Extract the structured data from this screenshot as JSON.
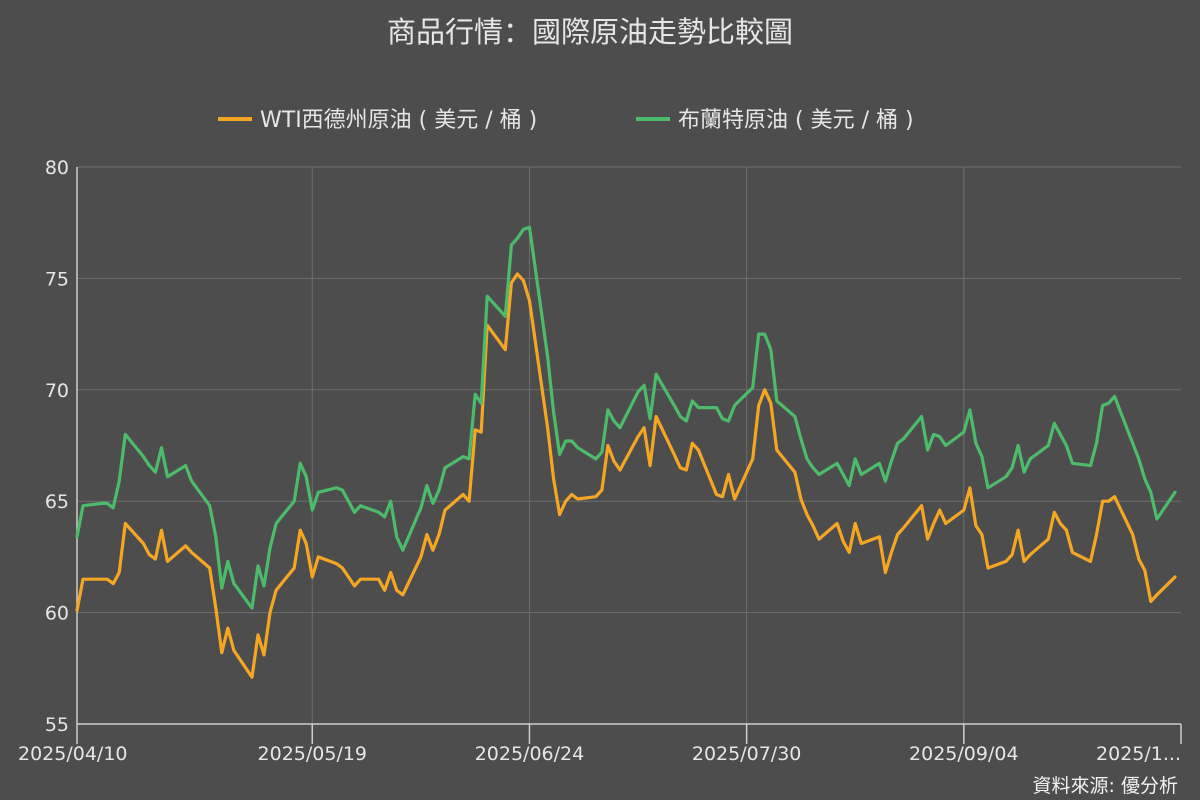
{
  "chart_data": {
    "type": "line",
    "title": "商品行情：國際原油走勢比較圖",
    "source": "資料來源: 優分析",
    "ylim": [
      55,
      80
    ],
    "yticks": [
      55,
      60,
      65,
      70,
      75,
      80
    ],
    "grid": true,
    "legend_position": "top-center",
    "xtick_labels": [
      "2025/04/10",
      "2025/05/19",
      "2025/06/24",
      "2025/07/30",
      "2025/09/04",
      "2025/1..."
    ],
    "xtick_dates": [
      "2025-04-10",
      "2025-05-19",
      "2025-06-24",
      "2025-07-30",
      "2025-09-04",
      "2025-10-10"
    ],
    "series": [
      {
        "name": "WTI西德州原油 ( 美元 / 桶 )",
        "color": "#f5a623",
        "points": [
          [
            "2025-04-10",
            60.1
          ],
          [
            "2025-04-11",
            61.5
          ],
          [
            "2025-04-14",
            61.5
          ],
          [
            "2025-04-15",
            61.5
          ],
          [
            "2025-04-16",
            61.3
          ],
          [
            "2025-04-17",
            61.8
          ],
          [
            "2025-04-18",
            64.0
          ],
          [
            "2025-04-21",
            63.1
          ],
          [
            "2025-04-22",
            62.6
          ],
          [
            "2025-04-23",
            62.4
          ],
          [
            "2025-04-24",
            63.7
          ],
          [
            "2025-04-25",
            62.3
          ],
          [
            "2025-04-28",
            63.0
          ],
          [
            "2025-04-29",
            62.7
          ],
          [
            "2025-05-02",
            62.0
          ],
          [
            "2025-05-03",
            60.2
          ],
          [
            "2025-05-04",
            58.2
          ],
          [
            "2025-05-05",
            59.3
          ],
          [
            "2025-05-06",
            58.3
          ],
          [
            "2025-05-09",
            57.1
          ],
          [
            "2025-05-10",
            59.0
          ],
          [
            "2025-05-11",
            58.1
          ],
          [
            "2025-05-12",
            60.0
          ],
          [
            "2025-05-13",
            61.0
          ],
          [
            "2025-05-16",
            62.0
          ],
          [
            "2025-05-17",
            63.7
          ],
          [
            "2025-05-18",
            63.1
          ],
          [
            "2025-05-19",
            61.6
          ],
          [
            "2025-05-20",
            62.5
          ],
          [
            "2025-05-23",
            62.2
          ],
          [
            "2025-05-24",
            62.0
          ],
          [
            "2025-05-26",
            61.2
          ],
          [
            "2025-05-27",
            61.5
          ],
          [
            "2025-05-30",
            61.5
          ],
          [
            "2025-05-31",
            61.0
          ],
          [
            "2025-06-01",
            61.8
          ],
          [
            "2025-06-02",
            61.0
          ],
          [
            "2025-06-03",
            60.8
          ],
          [
            "2025-06-06",
            62.5
          ],
          [
            "2025-06-07",
            63.5
          ],
          [
            "2025-06-08",
            62.8
          ],
          [
            "2025-06-09",
            63.5
          ],
          [
            "2025-06-10",
            64.6
          ],
          [
            "2025-06-13",
            65.3
          ],
          [
            "2025-06-14",
            65.0
          ],
          [
            "2025-06-15",
            68.2
          ],
          [
            "2025-06-16",
            68.1
          ],
          [
            "2025-06-17",
            72.9
          ],
          [
            "2025-06-20",
            71.8
          ],
          [
            "2025-06-21",
            74.8
          ],
          [
            "2025-06-22",
            75.2
          ],
          [
            "2025-06-23",
            74.9
          ],
          [
            "2025-06-24",
            74.0
          ],
          [
            "2025-06-27",
            68.3
          ],
          [
            "2025-06-28",
            66.0
          ],
          [
            "2025-06-29",
            64.4
          ],
          [
            "2025-06-30",
            65.0
          ],
          [
            "2025-07-01",
            65.3
          ],
          [
            "2025-07-02",
            65.1
          ],
          [
            "2025-07-05",
            65.2
          ],
          [
            "2025-07-06",
            65.5
          ],
          [
            "2025-07-07",
            67.5
          ],
          [
            "2025-07-08",
            66.8
          ],
          [
            "2025-07-09",
            66.4
          ],
          [
            "2025-07-12",
            67.9
          ],
          [
            "2025-07-13",
            68.3
          ],
          [
            "2025-07-14",
            66.6
          ],
          [
            "2025-07-15",
            68.8
          ],
          [
            "2025-07-18",
            67.1
          ],
          [
            "2025-07-19",
            66.5
          ],
          [
            "2025-07-20",
            66.4
          ],
          [
            "2025-07-21",
            67.6
          ],
          [
            "2025-07-22",
            67.3
          ],
          [
            "2025-07-25",
            65.3
          ],
          [
            "2025-07-26",
            65.2
          ],
          [
            "2025-07-27",
            66.2
          ],
          [
            "2025-07-28",
            65.1
          ],
          [
            "2025-07-31",
            66.9
          ],
          [
            "2025-08-01",
            69.3
          ],
          [
            "2025-08-02",
            70.0
          ],
          [
            "2025-08-03",
            69.4
          ],
          [
            "2025-08-04",
            67.3
          ],
          [
            "2025-08-07",
            66.3
          ],
          [
            "2025-08-08",
            65.1
          ],
          [
            "2025-08-09",
            64.4
          ],
          [
            "2025-08-10",
            63.9
          ],
          [
            "2025-08-11",
            63.3
          ],
          [
            "2025-08-14",
            64.0
          ],
          [
            "2025-08-15",
            63.2
          ],
          [
            "2025-08-16",
            62.7
          ],
          [
            "2025-08-17",
            64.0
          ],
          [
            "2025-08-18",
            63.1
          ],
          [
            "2025-08-21",
            63.4
          ],
          [
            "2025-08-22",
            61.8
          ],
          [
            "2025-08-23",
            62.7
          ],
          [
            "2025-08-24",
            63.5
          ],
          [
            "2025-08-25",
            63.8
          ],
          [
            "2025-08-28",
            64.8
          ],
          [
            "2025-08-29",
            63.3
          ],
          [
            "2025-08-30",
            64.0
          ],
          [
            "2025-08-31",
            64.6
          ],
          [
            "2025-09-01",
            64.0
          ],
          [
            "2025-09-04",
            64.6
          ],
          [
            "2025-09-05",
            65.6
          ],
          [
            "2025-09-06",
            63.9
          ],
          [
            "2025-09-07",
            63.5
          ],
          [
            "2025-09-08",
            62.0
          ],
          [
            "2025-09-11",
            62.3
          ],
          [
            "2025-09-12",
            62.6
          ],
          [
            "2025-09-13",
            63.7
          ],
          [
            "2025-09-14",
            62.3
          ],
          [
            "2025-09-15",
            62.6
          ],
          [
            "2025-09-18",
            63.3
          ],
          [
            "2025-09-19",
            64.5
          ],
          [
            "2025-09-20",
            64.0
          ],
          [
            "2025-09-21",
            63.7
          ],
          [
            "2025-09-22",
            62.7
          ],
          [
            "2025-09-25",
            62.3
          ],
          [
            "2025-09-26",
            63.5
          ],
          [
            "2025-09-27",
            65.0
          ],
          [
            "2025-09-28",
            65.0
          ],
          [
            "2025-09-29",
            65.2
          ],
          [
            "2025-10-02",
            63.5
          ],
          [
            "2025-10-03",
            62.4
          ],
          [
            "2025-10-04",
            61.9
          ],
          [
            "2025-10-05",
            60.5
          ],
          [
            "2025-10-06",
            60.8
          ],
          [
            "2025-10-09",
            61.6
          ]
        ]
      },
      {
        "name": "布蘭特原油 ( 美元 / 桶 )",
        "color": "#4cbb6a",
        "points": [
          [
            "2025-04-10",
            63.4
          ],
          [
            "2025-04-11",
            64.8
          ],
          [
            "2025-04-14",
            64.9
          ],
          [
            "2025-04-15",
            64.9
          ],
          [
            "2025-04-16",
            64.7
          ],
          [
            "2025-04-17",
            65.9
          ],
          [
            "2025-04-18",
            68.0
          ],
          [
            "2025-04-21",
            67.0
          ],
          [
            "2025-04-22",
            66.6
          ],
          [
            "2025-04-23",
            66.3
          ],
          [
            "2025-04-24",
            67.4
          ],
          [
            "2025-04-25",
            66.1
          ],
          [
            "2025-04-28",
            66.6
          ],
          [
            "2025-04-29",
            65.9
          ],
          [
            "2025-05-02",
            64.8
          ],
          [
            "2025-05-03",
            63.4
          ],
          [
            "2025-05-04",
            61.1
          ],
          [
            "2025-05-05",
            62.3
          ],
          [
            "2025-05-06",
            61.3
          ],
          [
            "2025-05-09",
            60.2
          ],
          [
            "2025-05-10",
            62.1
          ],
          [
            "2025-05-11",
            61.2
          ],
          [
            "2025-05-12",
            62.9
          ],
          [
            "2025-05-13",
            64.0
          ],
          [
            "2025-05-16",
            65.0
          ],
          [
            "2025-05-17",
            66.7
          ],
          [
            "2025-05-18",
            66.1
          ],
          [
            "2025-05-19",
            64.6
          ],
          [
            "2025-05-20",
            65.4
          ],
          [
            "2025-05-23",
            65.6
          ],
          [
            "2025-05-24",
            65.5
          ],
          [
            "2025-05-26",
            64.5
          ],
          [
            "2025-05-27",
            64.8
          ],
          [
            "2025-05-30",
            64.5
          ],
          [
            "2025-05-31",
            64.3
          ],
          [
            "2025-06-01",
            65.0
          ],
          [
            "2025-06-02",
            63.4
          ],
          [
            "2025-06-03",
            62.8
          ],
          [
            "2025-06-06",
            64.7
          ],
          [
            "2025-06-07",
            65.7
          ],
          [
            "2025-06-08",
            64.9
          ],
          [
            "2025-06-09",
            65.5
          ],
          [
            "2025-06-10",
            66.5
          ],
          [
            "2025-06-13",
            67.0
          ],
          [
            "2025-06-14",
            66.9
          ],
          [
            "2025-06-15",
            69.8
          ],
          [
            "2025-06-16",
            69.4
          ],
          [
            "2025-06-17",
            74.2
          ],
          [
            "2025-06-20",
            73.3
          ],
          [
            "2025-06-21",
            76.5
          ],
          [
            "2025-06-22",
            76.8
          ],
          [
            "2025-06-23",
            77.2
          ],
          [
            "2025-06-24",
            77.3
          ],
          [
            "2025-06-27",
            71.5
          ],
          [
            "2025-06-28",
            69.0
          ],
          [
            "2025-06-29",
            67.1
          ],
          [
            "2025-06-30",
            67.7
          ],
          [
            "2025-07-01",
            67.7
          ],
          [
            "2025-07-02",
            67.4
          ],
          [
            "2025-07-05",
            66.9
          ],
          [
            "2025-07-06",
            67.2
          ],
          [
            "2025-07-07",
            69.1
          ],
          [
            "2025-07-08",
            68.6
          ],
          [
            "2025-07-09",
            68.3
          ],
          [
            "2025-07-12",
            69.9
          ],
          [
            "2025-07-13",
            70.2
          ],
          [
            "2025-07-14",
            68.7
          ],
          [
            "2025-07-15",
            70.7
          ],
          [
            "2025-07-18",
            69.3
          ],
          [
            "2025-07-19",
            68.8
          ],
          [
            "2025-07-20",
            68.6
          ],
          [
            "2025-07-21",
            69.5
          ],
          [
            "2025-07-22",
            69.2
          ],
          [
            "2025-07-25",
            69.2
          ],
          [
            "2025-07-26",
            68.7
          ],
          [
            "2025-07-27",
            68.6
          ],
          [
            "2025-07-28",
            69.3
          ],
          [
            "2025-07-31",
            70.1
          ],
          [
            "2025-08-01",
            72.5
          ],
          [
            "2025-08-02",
            72.5
          ],
          [
            "2025-08-03",
            71.8
          ],
          [
            "2025-08-04",
            69.5
          ],
          [
            "2025-08-07",
            68.8
          ],
          [
            "2025-08-08",
            67.8
          ],
          [
            "2025-08-09",
            66.9
          ],
          [
            "2025-08-10",
            66.5
          ],
          [
            "2025-08-11",
            66.2
          ],
          [
            "2025-08-14",
            66.7
          ],
          [
            "2025-08-15",
            66.2
          ],
          [
            "2025-08-16",
            65.7
          ],
          [
            "2025-08-17",
            66.9
          ],
          [
            "2025-08-18",
            66.2
          ],
          [
            "2025-08-21",
            66.7
          ],
          [
            "2025-08-22",
            65.9
          ],
          [
            "2025-08-23",
            66.8
          ],
          [
            "2025-08-24",
            67.6
          ],
          [
            "2025-08-25",
            67.8
          ],
          [
            "2025-08-28",
            68.8
          ],
          [
            "2025-08-29",
            67.3
          ],
          [
            "2025-08-30",
            68.0
          ],
          [
            "2025-08-31",
            67.9
          ],
          [
            "2025-09-01",
            67.5
          ],
          [
            "2025-09-04",
            68.1
          ],
          [
            "2025-09-05",
            69.1
          ],
          [
            "2025-09-06",
            67.6
          ],
          [
            "2025-09-07",
            67.0
          ],
          [
            "2025-09-08",
            65.6
          ],
          [
            "2025-09-11",
            66.1
          ],
          [
            "2025-09-12",
            66.5
          ],
          [
            "2025-09-13",
            67.5
          ],
          [
            "2025-09-14",
            66.3
          ],
          [
            "2025-09-15",
            66.9
          ],
          [
            "2025-09-18",
            67.5
          ],
          [
            "2025-09-19",
            68.5
          ],
          [
            "2025-09-20",
            68.0
          ],
          [
            "2025-09-21",
            67.5
          ],
          [
            "2025-09-22",
            66.7
          ],
          [
            "2025-09-25",
            66.6
          ],
          [
            "2025-09-26",
            67.6
          ],
          [
            "2025-09-27",
            69.3
          ],
          [
            "2025-09-28",
            69.4
          ],
          [
            "2025-09-29",
            69.7
          ],
          [
            "2025-10-02",
            67.6
          ],
          [
            "2025-10-03",
            66.9
          ],
          [
            "2025-10-04",
            66.0
          ],
          [
            "2025-10-05",
            65.4
          ],
          [
            "2025-10-06",
            64.2
          ],
          [
            "2025-10-09",
            65.4
          ]
        ]
      }
    ]
  }
}
